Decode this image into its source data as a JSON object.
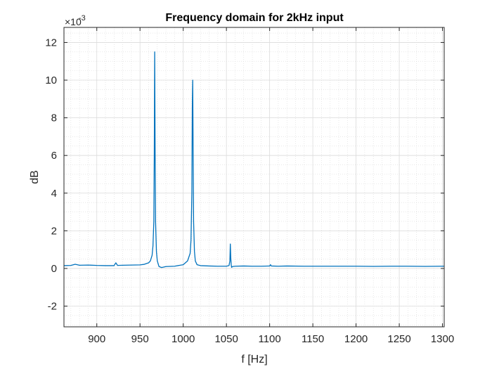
{
  "chart_data": {
    "type": "line",
    "title": "Frequency domain for 2kHz input",
    "xlabel": "f [Hz]",
    "ylabel": "dB",
    "y_multiplier_text": "×10",
    "y_multiplier_exponent": "-3",
    "xlim": [
      862,
      1302
    ],
    "ylim": [
      -0.0031,
      0.0128
    ],
    "xticks": [
      900,
      950,
      1000,
      1050,
      1100,
      1150,
      1200,
      1250,
      1300
    ],
    "xtick_labels": [
      "900",
      "950",
      "1000",
      "1050",
      "1100",
      "1150",
      "1200",
      "1250",
      "1300"
    ],
    "yticks": [
      -0.002,
      0,
      0.002,
      0.004,
      0.006,
      0.008,
      0.01,
      0.012
    ],
    "ytick_labels": [
      "-2",
      "0",
      "2",
      "4",
      "6",
      "8",
      "10",
      "12"
    ],
    "grid": true,
    "minor_grid": true,
    "line_color": "#0072BD",
    "series": [
      {
        "values_x": [
          862,
          870,
          875,
          880,
          890,
          900,
          910,
          920,
          922,
          924,
          930,
          940,
          950,
          955,
          960,
          962,
          964,
          965,
          966,
          966.5,
          967,
          967.5,
          968,
          969,
          970,
          972,
          975,
          980,
          990,
          1000,
          1005,
          1008,
          1009,
          1010,
          1010.5,
          1011,
          1011.5,
          1012,
          1013,
          1014,
          1016,
          1020,
          1030,
          1040,
          1050,
          1053,
          1054,
          1054.5,
          1055,
          1055.5,
          1056,
          1057,
          1060,
          1070,
          1080,
          1090,
          1100,
          1101,
          1102,
          1110,
          1120,
          1140,
          1160,
          1180,
          1200,
          1220,
          1240,
          1260,
          1280,
          1300,
          1302
        ],
        "values_y": [
          0.00015,
          0.00016,
          0.00022,
          0.00017,
          0.00018,
          0.00016,
          0.00015,
          0.00015,
          0.0003,
          0.00016,
          0.00017,
          0.00018,
          0.00019,
          0.00022,
          0.0003,
          0.0004,
          0.0007,
          0.0012,
          0.0025,
          0.006,
          0.0115,
          0.006,
          0.0025,
          0.0009,
          0.0004,
          0.0001,
          5e-05,
          0.0001,
          0.00012,
          0.0002,
          0.0004,
          0.0008,
          0.0015,
          0.004,
          0.0085,
          0.01,
          0.006,
          0.0025,
          0.0009,
          0.0004,
          0.0002,
          0.00015,
          0.00013,
          0.00012,
          0.00012,
          0.00015,
          0.0004,
          0.0013,
          0.0006,
          0.0002,
          6e-05,
          0.0001,
          0.00012,
          0.00013,
          0.00012,
          0.00012,
          0.00013,
          0.0002,
          0.00013,
          0.00012,
          0.00013,
          0.00012,
          0.00012,
          0.00012,
          0.00012,
          0.00011,
          0.00012,
          0.00012,
          0.00011,
          0.00012,
          0.00012
        ]
      }
    ]
  }
}
